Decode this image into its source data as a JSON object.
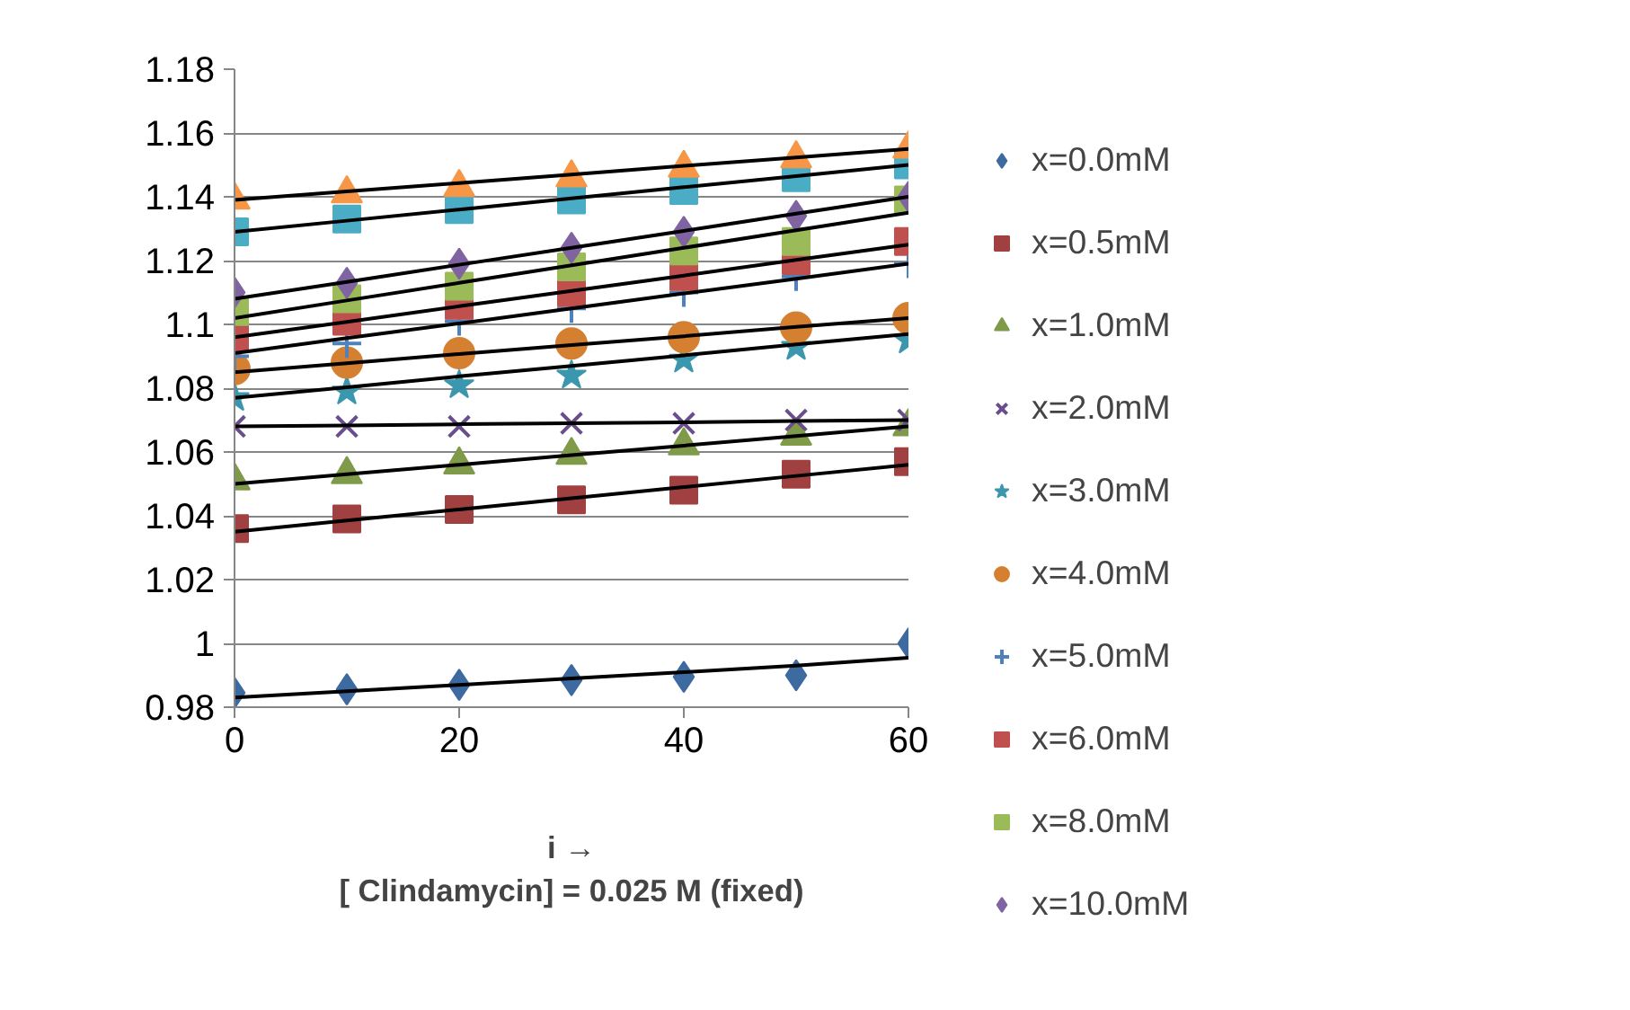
{
  "chart_data": {
    "type": "scatter",
    "xlabel": "i →\n[ Clindamycin] = 0.025 M (fixed)",
    "x": [
      0,
      10,
      20,
      30,
      40,
      50,
      60
    ],
    "xlim": [
      0,
      60
    ],
    "xticks": [
      0,
      20,
      40,
      60
    ],
    "ylim": [
      0.98,
      1.18
    ],
    "yticks": [
      0.98,
      1,
      1.02,
      1.04,
      1.06,
      1.08,
      1.1,
      1.12,
      1.14,
      1.16,
      1.18
    ],
    "grid": "y",
    "legend": "right",
    "series": [
      {
        "name": "x=0.0mM",
        "color": "#3d6aa0",
        "marker": "diamond",
        "values": [
          0.9845,
          0.9856,
          0.987,
          0.9885,
          0.9895,
          0.99,
          1.0
        ]
      },
      {
        "name": "x=0.5mM",
        "color": "#a04040",
        "marker": "square",
        "values": [
          1.036,
          1.039,
          1.042,
          1.045,
          1.048,
          1.053,
          1.057
        ]
      },
      {
        "name": "x=1.0mM",
        "color": "#7f9a48",
        "marker": "triangle",
        "values": [
          1.051,
          1.053,
          1.056,
          1.059,
          1.062,
          1.065,
          1.068
        ]
      },
      {
        "name": "x=2.0mM",
        "color": "#6a4e8c",
        "marker": "x",
        "values": [
          1.068,
          1.068,
          1.068,
          1.069,
          1.069,
          1.07,
          1.07
        ]
      },
      {
        "name": "x=3.0mM",
        "color": "#3a97ad",
        "marker": "star",
        "values": [
          1.077,
          1.079,
          1.081,
          1.084,
          1.089,
          1.093,
          1.095
        ]
      },
      {
        "name": "x=4.0mM",
        "color": "#d58030",
        "marker": "circle",
        "values": [
          1.086,
          1.088,
          1.091,
          1.094,
          1.096,
          1.099,
          1.102
        ]
      },
      {
        "name": "x=5.0mM",
        "color": "#4f81bd",
        "marker": "cross",
        "values": [
          1.09,
          1.094,
          1.101,
          1.105,
          1.11,
          1.115,
          1.119
        ]
      },
      {
        "name": "x=6.0mM",
        "color": "#c0504d",
        "marker": "square",
        "values": [
          1.096,
          1.101,
          1.106,
          1.11,
          1.115,
          1.12,
          1.126
        ]
      },
      {
        "name": "x=8.0mM",
        "color": "#9bbb59",
        "marker": "square",
        "values": [
          1.104,
          1.108,
          1.112,
          1.118,
          1.123,
          1.126,
          1.139
        ]
      },
      {
        "name": "x=10.0mM",
        "color": "#8064a2",
        "marker": "diamond",
        "values": [
          1.11,
          1.113,
          1.119,
          1.124,
          1.129,
          1.134,
          1.14
        ]
      },
      {
        "color": "#4bacc6",
        "marker": "square",
        "values": [
          1.129,
          1.133,
          1.136,
          1.139,
          1.142,
          1.146,
          1.15
        ]
      },
      {
        "color": "#f79646",
        "marker": "triangle",
        "values": [
          1.139,
          1.141,
          1.143,
          1.146,
          1.149,
          1.152,
          1.155
        ]
      },
      {
        "type": "line",
        "color": "#000000",
        "values": [
          0.983,
          0.985,
          0.987,
          0.989,
          0.991,
          0.993,
          0.9955
        ]
      },
      {
        "type": "line",
        "color": "#000000",
        "values": [
          1.035,
          1.0385,
          1.042,
          1.0455,
          1.049,
          1.0525,
          1.056
        ]
      },
      {
        "type": "line",
        "color": "#000000",
        "values": [
          1.05,
          1.053,
          1.056,
          1.059,
          1.062,
          1.065,
          1.068
        ]
      },
      {
        "type": "line",
        "color": "#000000",
        "values": [
          1.068,
          1.0683,
          1.0687,
          1.069,
          1.0693,
          1.0697,
          1.07
        ]
      },
      {
        "type": "line",
        "color": "#000000",
        "values": [
          1.077,
          1.0803,
          1.0837,
          1.087,
          1.0903,
          1.0937,
          1.097
        ]
      },
      {
        "type": "line",
        "color": "#000000",
        "values": [
          1.085,
          1.0878,
          1.0907,
          1.0935,
          1.0963,
          1.0992,
          1.102
        ]
      },
      {
        "type": "line",
        "color": "#000000",
        "values": [
          1.091,
          1.0957,
          1.1003,
          1.105,
          1.1097,
          1.1143,
          1.119
        ]
      },
      {
        "type": "line",
        "color": "#000000",
        "values": [
          1.096,
          1.1008,
          1.1057,
          1.1105,
          1.1153,
          1.1202,
          1.125
        ]
      },
      {
        "type": "line",
        "color": "#000000",
        "values": [
          1.102,
          1.1075,
          1.113,
          1.1185,
          1.124,
          1.1295,
          1.135
        ]
      },
      {
        "type": "line",
        "color": "#000000",
        "values": [
          1.108,
          1.1133,
          1.1187,
          1.124,
          1.1293,
          1.1347,
          1.14
        ]
      },
      {
        "type": "line",
        "color": "#000000",
        "values": [
          1.129,
          1.1325,
          1.136,
          1.1395,
          1.143,
          1.1465,
          1.15
        ]
      },
      {
        "type": "line",
        "color": "#000000",
        "values": [
          1.139,
          1.1417,
          1.1443,
          1.147,
          1.1497,
          1.1523,
          1.155
        ]
      }
    ]
  }
}
